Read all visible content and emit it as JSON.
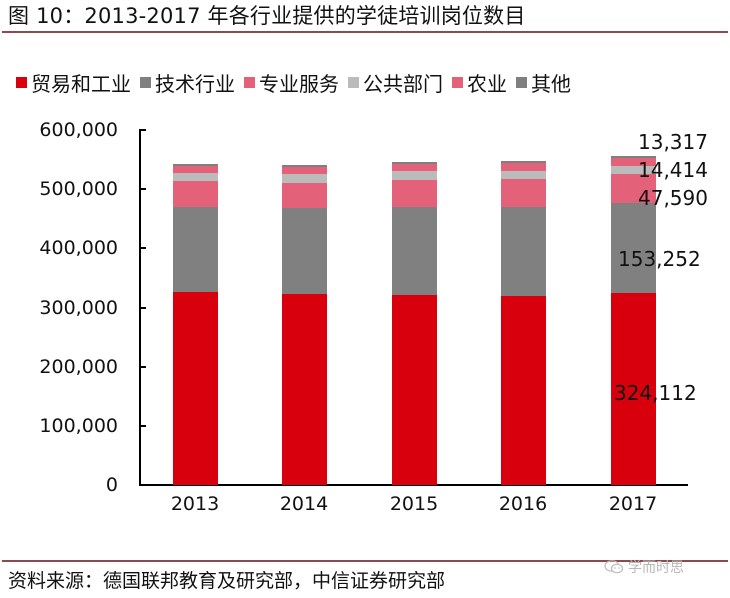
{
  "header": {
    "title": "图 10：2013-2017 年各行业提供的学徒培训岗位数目"
  },
  "footer": {
    "source": "资料来源：德国联邦教育及研究部，中信证券研究部",
    "watermark": "学而时思",
    "watermark_icon": "wechat-icon"
  },
  "colors": {
    "trade_industry": "#d9000d",
    "technical": "#808080",
    "professional": "#e4617a",
    "public": "#bbbbbb",
    "agriculture": "#e4617a",
    "other": "#7f7f7f",
    "rule": "#8b4a4e"
  },
  "legend": [
    {
      "label": "贸易和工业",
      "color": "#d9000d"
    },
    {
      "label": "技术行业",
      "color": "#808080"
    },
    {
      "label": "专业服务",
      "color": "#e4617a"
    },
    {
      "label": "公共部门",
      "color": "#bbbbbb"
    },
    {
      "label": "农业",
      "color": "#e4617a"
    },
    {
      "label": "其他",
      "color": "#7f7f7f"
    }
  ],
  "y_ticks": [
    "0",
    "100,000",
    "200,000",
    "300,000",
    "400,000",
    "500,000",
    "600,000"
  ],
  "data_labels_2017": [
    "13,317",
    "14,414",
    "47,590",
    "153,252",
    "324,112"
  ],
  "chart_data": {
    "type": "bar",
    "stacked": true,
    "title": "图 10：2013-2017 年各行业提供的学徒培训岗位数目",
    "xlabel": "",
    "ylabel": "",
    "categories": [
      "2013",
      "2014",
      "2015",
      "2016",
      "2017"
    ],
    "ylim": [
      0,
      600000
    ],
    "y_tick_step": 100000,
    "legend_position": "top",
    "grid": false,
    "series": [
      {
        "name": "贸易和工业",
        "color": "#d9000d",
        "values": [
          326000,
          322000,
          321000,
          320000,
          324112
        ]
      },
      {
        "name": "技术行业",
        "color": "#808080",
        "values": [
          144000,
          146000,
          149000,
          150000,
          153252
        ]
      },
      {
        "name": "专业服务",
        "color": "#e4617a",
        "values": [
          43000,
          43000,
          46000,
          47000,
          47590
        ]
      },
      {
        "name": "公共部门",
        "color": "#bbbbbb",
        "values": [
          14000,
          14000,
          14000,
          14000,
          14414
        ]
      },
      {
        "name": "农业",
        "color": "#e4617a",
        "values": [
          13000,
          13000,
          13000,
          14000,
          13317
        ]
      },
      {
        "name": "其他",
        "color": "#7f7f7f",
        "values": [
          2500,
          2500,
          2500,
          2500,
          3000
        ]
      }
    ],
    "annotations": [
      {
        "category": "2017",
        "series": "贸易和工业",
        "text": "324,112"
      },
      {
        "category": "2017",
        "series": "技术行业",
        "text": "153,252"
      },
      {
        "category": "2017",
        "series": "专业服务",
        "text": "47,590"
      },
      {
        "category": "2017",
        "series": "公共部门",
        "text": "14,414"
      },
      {
        "category": "2017",
        "series": "农业",
        "text": "13,317"
      }
    ]
  }
}
